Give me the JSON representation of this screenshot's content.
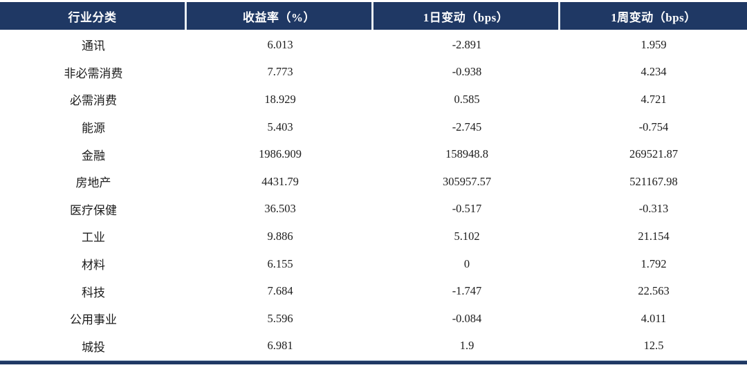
{
  "chart_data": {
    "type": "table",
    "title": "",
    "columns": [
      "行业分类",
      "收益率（%）",
      "1日变动（bps）",
      "1周变动（bps）"
    ],
    "rows": [
      [
        "通讯",
        "6.013",
        "-2.891",
        "1.959"
      ],
      [
        "非必需消费",
        "7.773",
        "-0.938",
        "4.234"
      ],
      [
        "必需消费",
        "18.929",
        "0.585",
        "4.721"
      ],
      [
        "能源",
        "5.403",
        "-2.745",
        "-0.754"
      ],
      [
        "金融",
        "1986.909",
        "158948.8",
        "269521.87"
      ],
      [
        "房地产",
        "4431.79",
        "305957.57",
        "521167.98"
      ],
      [
        "医疗保健",
        "36.503",
        "-0.517",
        "-0.313"
      ],
      [
        "工业",
        "9.886",
        "5.102",
        "21.154"
      ],
      [
        "材料",
        "6.155",
        "0",
        "1.792"
      ],
      [
        "科技",
        "7.684",
        "-1.747",
        "22.563"
      ],
      [
        "公用事业",
        "5.596",
        "-0.084",
        "4.011"
      ],
      [
        "城投",
        "6.981",
        "1.9",
        "12.5"
      ]
    ]
  },
  "colors": {
    "header_bg": "#1f3864",
    "header_text": "#ffffff",
    "body_text": "#1c1c1c",
    "bottom_rule": "#1f3864",
    "header_divider": "#e9eef3"
  }
}
